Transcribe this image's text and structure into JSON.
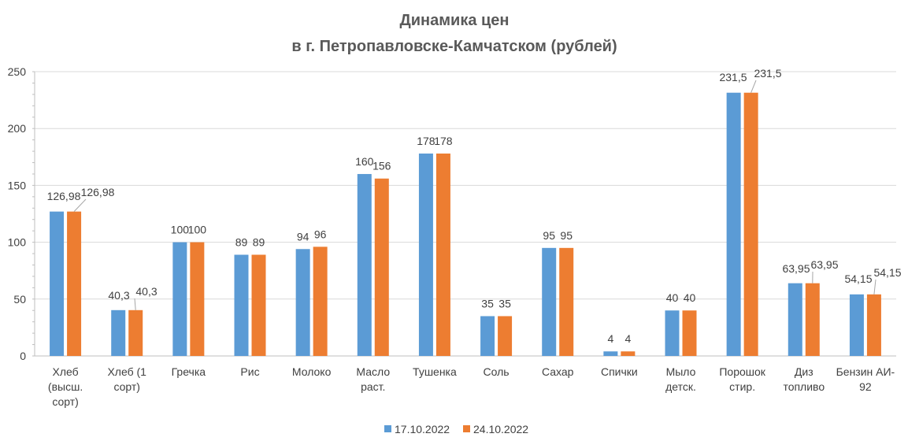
{
  "chart_data": {
    "type": "bar",
    "title_lines": [
      "Динамика цен",
      "в г. Петропавловске-Камчатском (рублей)"
    ],
    "categories": [
      [
        "Хлеб",
        "(высш.",
        "сорт)"
      ],
      [
        "Хлеб (1",
        "сорт)"
      ],
      [
        "Гречка"
      ],
      [
        "Рис"
      ],
      [
        "Молоко"
      ],
      [
        "Масло",
        "раст."
      ],
      [
        "Тушенка"
      ],
      [
        "Соль"
      ],
      [
        "Сахар"
      ],
      [
        "Спички"
      ],
      [
        "Мыло",
        "детск."
      ],
      [
        "Порошок",
        "стир."
      ],
      [
        "Диз",
        "топливо"
      ],
      [
        "Бензин АИ-",
        "92"
      ]
    ],
    "series": [
      {
        "name": "17.10.2022",
        "color": "#5B9BD5",
        "values": [
          126.98,
          40.3,
          100,
          89,
          94,
          160,
          178,
          35,
          95,
          4,
          40,
          231.5,
          63.95,
          54.15
        ],
        "labels": [
          "126,98",
          "40,3",
          "100",
          "89",
          "94",
          "160",
          "178",
          "35",
          "95",
          "4",
          "40",
          "231,5",
          "63,95",
          "54,15"
        ]
      },
      {
        "name": "24.10.2022",
        "color": "#ED7D31",
        "values": [
          126.98,
          40.3,
          100,
          89,
          96,
          156,
          178,
          35,
          95,
          4,
          40,
          231.5,
          63.95,
          54.15
        ],
        "labels": [
          "126,98",
          "40,3",
          "100",
          "89",
          "96",
          "156",
          "178",
          "35",
          "95",
          "4",
          "40",
          "231,5",
          "63,95",
          "54,15"
        ]
      }
    ],
    "yticks": [
      0,
      50,
      100,
      150,
      200,
      250
    ],
    "ylim": [
      0,
      250
    ],
    "grid": true,
    "legend_position": "bottom"
  }
}
